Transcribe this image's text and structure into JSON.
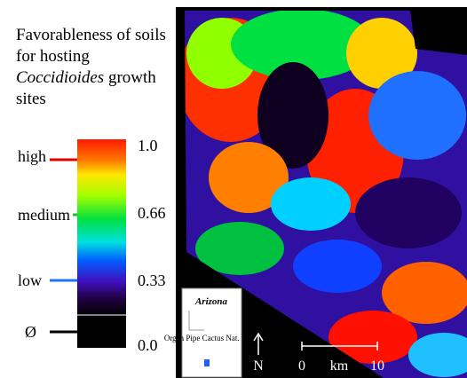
{
  "title": {
    "before": "Favorableness of soils for hosting ",
    "italic": "Coccidioides",
    "after": " growth sites"
  },
  "legend": {
    "classes": [
      "high",
      "medium",
      "low",
      "Ø"
    ],
    "ticks": [
      "1.0",
      "0.66",
      "0.33",
      "0.0"
    ]
  },
  "inset": {
    "title": "Arizona",
    "label": "Organ Pipe Cactus Nat. Mon."
  },
  "north": "N",
  "scale": {
    "start": "0",
    "unit": "km",
    "end": "10"
  }
}
